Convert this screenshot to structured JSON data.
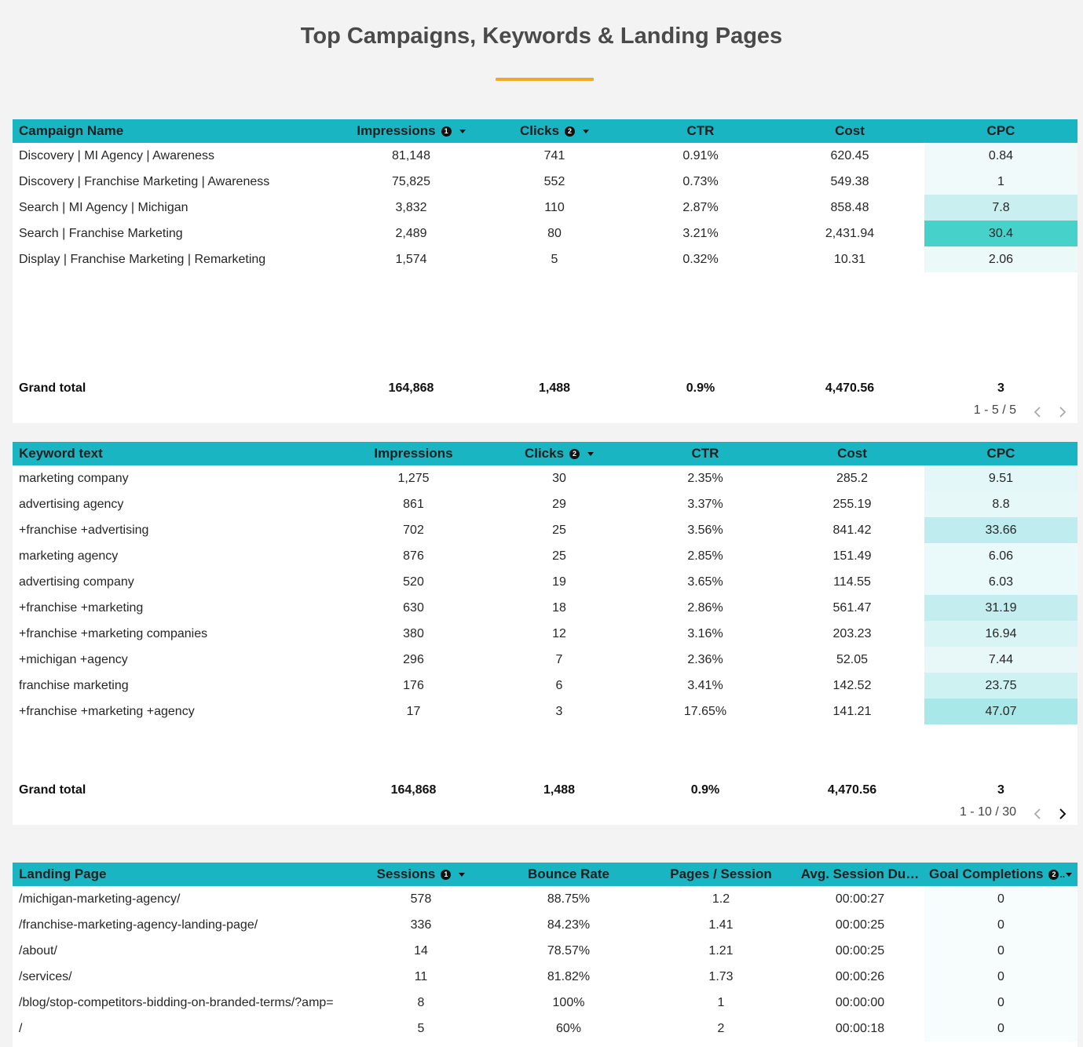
{
  "page": {
    "title": "Top Campaigns, Keywords & Landing Pages",
    "accent_color": "#f5a623",
    "header_color": "#19b5c3"
  },
  "campaigns": {
    "headers": {
      "name": "Campaign Name",
      "impressions": "Impressions",
      "impressions_sort": "1",
      "clicks": "Clicks",
      "clicks_sort": "2",
      "ctr": "CTR",
      "cost": "Cost",
      "cpc": "CPC"
    },
    "rows": [
      {
        "name": "Discovery | MI Agency | Awareness",
        "impressions": "81,148",
        "clicks": "741",
        "ctr": "0.91%",
        "cost": "620.45",
        "cpc": "0.84",
        "cpc_bg": "#f0fafb"
      },
      {
        "name": "Discovery | Franchise Marketing | Awareness",
        "impressions": "75,825",
        "clicks": "552",
        "ctr": "0.73%",
        "cost": "549.38",
        "cpc": "1",
        "cpc_bg": "#f0fafb"
      },
      {
        "name": "Search | MI Agency | Michigan",
        "impressions": "3,832",
        "clicks": "110",
        "ctr": "2.87%",
        "cost": "858.48",
        "cpc": "7.8",
        "cpc_bg": "#c9eff0"
      },
      {
        "name": "Search | Franchise Marketing",
        "impressions": "2,489",
        "clicks": "80",
        "ctr": "3.21%",
        "cost": "2,431.94",
        "cpc": "30.4",
        "cpc_bg": "#46d1cb"
      },
      {
        "name": "Display | Franchise Marketing | Remarketing",
        "impressions": "1,574",
        "clicks": "5",
        "ctr": "0.32%",
        "cost": "10.31",
        "cpc": "2.06",
        "cpc_bg": "#ebf9f9"
      }
    ],
    "total": {
      "name": "Grand total",
      "impressions": "164,868",
      "clicks": "1,488",
      "ctr": "0.9%",
      "cost": "4,470.56",
      "cpc": "3"
    },
    "pager": "1 - 5 / 5"
  },
  "keywords": {
    "headers": {
      "name": "Keyword text",
      "impressions": "Impressions",
      "clicks": "Clicks",
      "clicks_sort": "2",
      "ctr": "CTR",
      "cost": "Cost",
      "cpc": "CPC"
    },
    "rows": [
      {
        "name": "marketing company",
        "impressions": "1,275",
        "clicks": "30",
        "ctr": "2.35%",
        "cost": "285.2",
        "cpc": "9.51",
        "cpc_bg": "#e3f7f8"
      },
      {
        "name": "advertising agency",
        "impressions": "861",
        "clicks": "29",
        "ctr": "3.37%",
        "cost": "255.19",
        "cpc": "8.8",
        "cpc_bg": "#e6f8f8"
      },
      {
        "name": "+franchise +advertising",
        "impressions": "702",
        "clicks": "25",
        "ctr": "3.56%",
        "cost": "841.42",
        "cpc": "33.66",
        "cpc_bg": "#bfecee"
      },
      {
        "name": "marketing agency",
        "impressions": "876",
        "clicks": "25",
        "ctr": "2.85%",
        "cost": "151.49",
        "cpc": "6.06",
        "cpc_bg": "#eaf9f9"
      },
      {
        "name": "advertising company",
        "impressions": "520",
        "clicks": "19",
        "ctr": "3.65%",
        "cost": "114.55",
        "cpc": "6.03",
        "cpc_bg": "#eaf9f9"
      },
      {
        "name": "+franchise +marketing",
        "impressions": "630",
        "clicks": "18",
        "ctr": "2.86%",
        "cost": "561.47",
        "cpc": "31.19",
        "cpc_bg": "#c3edef"
      },
      {
        "name": "+franchise +marketing companies",
        "impressions": "380",
        "clicks": "12",
        "ctr": "3.16%",
        "cost": "203.23",
        "cpc": "16.94",
        "cpc_bg": "#d9f4f5"
      },
      {
        "name": "+michigan +agency",
        "impressions": "296",
        "clicks": "7",
        "ctr": "2.36%",
        "cost": "52.05",
        "cpc": "7.44",
        "cpc_bg": "#e8f8f9"
      },
      {
        "name": "franchise marketing",
        "impressions": "176",
        "clicks": "6",
        "ctr": "3.41%",
        "cost": "142.52",
        "cpc": "23.75",
        "cpc_bg": "#cef1f2"
      },
      {
        "name": "+franchise +marketing +agency",
        "impressions": "17",
        "clicks": "3",
        "ctr": "17.65%",
        "cost": "141.21",
        "cpc": "47.07",
        "cpc_bg": "#a8e8e8"
      }
    ],
    "total": {
      "name": "Grand total",
      "impressions": "164,868",
      "clicks": "1,488",
      "ctr": "0.9%",
      "cost": "4,470.56",
      "cpc": "3"
    },
    "pager": "1 - 10 / 30"
  },
  "landing": {
    "headers": {
      "name": "Landing Page",
      "sessions": "Sessions",
      "sessions_sort": "1",
      "bounce": "Bounce Rate",
      "pages": "Pages / Session",
      "duration": "Avg. Session Du…",
      "goals": "Goal Completions",
      "goals_sort": "2"
    },
    "rows": [
      {
        "name": "/michigan-marketing-agency/",
        "sessions": "578",
        "bounce": "88.75%",
        "pages": "1.2",
        "duration": "00:00:27",
        "goals": "0"
      },
      {
        "name": "/franchise-marketing-agency-landing-page/",
        "sessions": "336",
        "bounce": "84.23%",
        "pages": "1.41",
        "duration": "00:00:25",
        "goals": "0"
      },
      {
        "name": "/about/",
        "sessions": "14",
        "bounce": "78.57%",
        "pages": "1.21",
        "duration": "00:00:25",
        "goals": "0"
      },
      {
        "name": "/services/",
        "sessions": "11",
        "bounce": "81.82%",
        "pages": "1.73",
        "duration": "00:00:26",
        "goals": "0"
      },
      {
        "name": "/blog/stop-competitors-bidding-on-branded-terms/?amp=",
        "sessions": "8",
        "bounce": "100%",
        "pages": "1",
        "duration": "00:00:00",
        "goals": "0"
      },
      {
        "name": "/",
        "sessions": "5",
        "bounce": "60%",
        "pages": "2",
        "duration": "00:00:18",
        "goals": "0"
      }
    ]
  }
}
